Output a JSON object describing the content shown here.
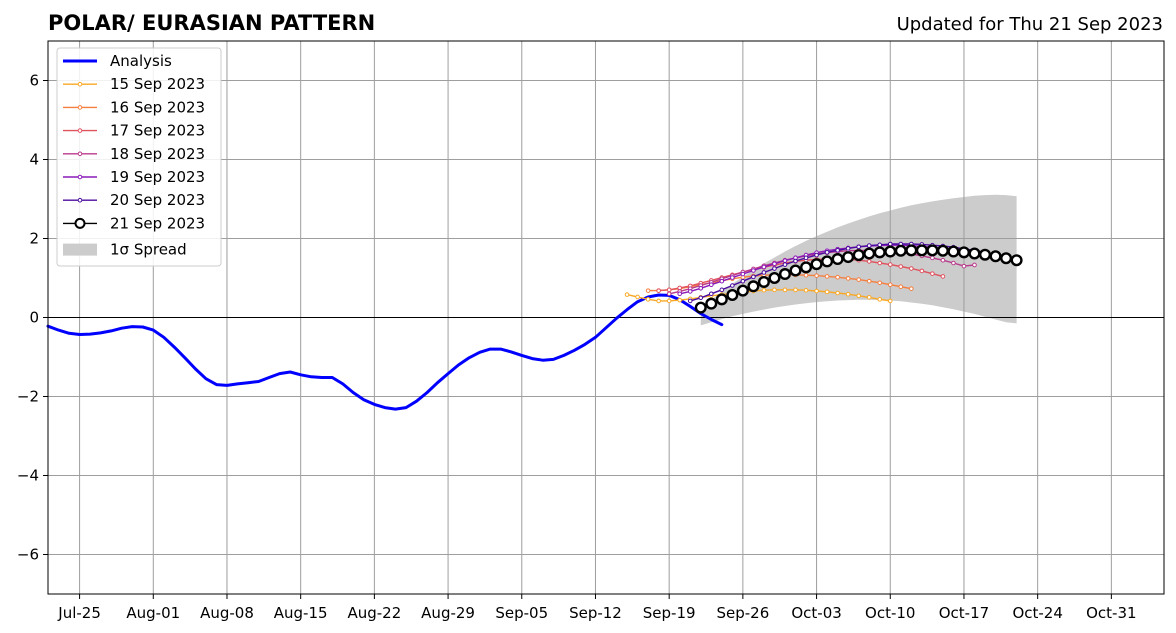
{
  "header": {
    "title": "POLAR/ EURASIAN  PATTERN",
    "updated": "Updated for Thu 21 Sep 2023"
  },
  "chart_data": {
    "type": "line",
    "title": "POLAR/ EURASIAN  PATTERN",
    "xlabel": "",
    "ylabel": "",
    "xlim": [
      "2023-07-22",
      "2023-11-05"
    ],
    "ylim": [
      -7,
      7
    ],
    "grid": true,
    "legend_position": "top-left",
    "x_ticks": [
      "Jul-25",
      "Aug-01",
      "Aug-08",
      "Aug-15",
      "Aug-22",
      "Aug-29",
      "Sep-05",
      "Sep-12",
      "Sep-19",
      "Sep-26",
      "Oct-03",
      "Oct-10",
      "Oct-17",
      "Oct-24",
      "Oct-31"
    ],
    "y_ticks": [
      "−6",
      "−4",
      "−2",
      "0",
      "2",
      "4",
      "6"
    ],
    "y_tick_values": [
      -6,
      -4,
      -2,
      0,
      2,
      4,
      6
    ],
    "analysis": {
      "name": "Analysis",
      "color": "#0000ff",
      "start": "2023-07-22",
      "values": [
        -0.22,
        -0.32,
        -0.4,
        -0.43,
        -0.42,
        -0.39,
        -0.34,
        -0.27,
        -0.23,
        -0.24,
        -0.32,
        -0.5,
        -0.75,
        -1.02,
        -1.3,
        -1.55,
        -1.7,
        -1.72,
        -1.68,
        -1.65,
        -1.62,
        -1.52,
        -1.42,
        -1.38,
        -1.45,
        -1.5,
        -1.52,
        -1.52,
        -1.68,
        -1.9,
        -2.08,
        -2.2,
        -2.28,
        -2.32,
        -2.28,
        -2.12,
        -1.9,
        -1.65,
        -1.42,
        -1.2,
        -1.02,
        -0.88,
        -0.8,
        -0.8,
        -0.87,
        -0.96,
        -1.04,
        -1.08,
        -1.06,
        -0.96,
        -0.83,
        -0.68,
        -0.5,
        -0.26,
        -0.02,
        0.2,
        0.4,
        0.52,
        0.57,
        0.56,
        0.45,
        0.28,
        0.1,
        -0.05,
        -0.18
      ]
    },
    "forecasts": [
      {
        "name": "15 Sep 2023",
        "color": "#f9a825",
        "start": "2023-09-15",
        "values": [
          0.58,
          0.52,
          0.46,
          0.42,
          0.42,
          0.44,
          0.47,
          0.51,
          0.55,
          0.58,
          0.61,
          0.64,
          0.67,
          0.69,
          0.7,
          0.7,
          0.7,
          0.69,
          0.67,
          0.65,
          0.62,
          0.59,
          0.55,
          0.51,
          0.46,
          0.42
        ]
      },
      {
        "name": "16 Sep 2023",
        "color": "#f57f41",
        "start": "2023-09-17",
        "values": [
          0.68,
          0.68,
          0.7,
          0.73,
          0.78,
          0.83,
          0.88,
          0.93,
          0.98,
          1.02,
          1.05,
          1.07,
          1.08,
          1.08,
          1.08,
          1.07,
          1.06,
          1.04,
          1.02,
          0.99,
          0.96,
          0.92,
          0.88,
          0.83,
          0.78,
          0.73
        ]
      },
      {
        "name": "17 Sep 2023",
        "color": "#e0525e",
        "start": "2023-09-18",
        "values": [
          0.68,
          0.7,
          0.75,
          0.8,
          0.87,
          0.94,
          1.01,
          1.08,
          1.15,
          1.21,
          1.27,
          1.33,
          1.38,
          1.42,
          1.45,
          1.47,
          1.48,
          1.48,
          1.47,
          1.45,
          1.42,
          1.38,
          1.34,
          1.29,
          1.24,
          1.18,
          1.11,
          1.04
        ]
      },
      {
        "name": "18 Sep 2023",
        "color": "#b93a8c",
        "start": "2023-09-19",
        "values": [
          0.6,
          0.66,
          0.73,
          0.81,
          0.89,
          0.98,
          1.06,
          1.15,
          1.23,
          1.31,
          1.38,
          1.45,
          1.51,
          1.56,
          1.61,
          1.64,
          1.67,
          1.69,
          1.7,
          1.7,
          1.69,
          1.67,
          1.64,
          1.61,
          1.56,
          1.51,
          1.45,
          1.38,
          1.3,
          1.33
        ]
      },
      {
        "name": "19 Sep 2023",
        "color": "#8a1ab8",
        "start": "2023-09-20",
        "values": [
          0.6,
          0.66,
          0.74,
          0.83,
          0.92,
          1.01,
          1.1,
          1.19,
          1.28,
          1.36,
          1.44,
          1.51,
          1.58,
          1.64,
          1.69,
          1.73,
          1.76,
          1.79,
          1.81,
          1.82,
          1.83,
          1.83,
          1.82,
          1.8,
          1.78,
          1.75,
          1.71,
          1.66,
          1.6,
          1.53
        ]
      },
      {
        "name": "20 Sep 2023",
        "color": "#4b0c9e",
        "start": "2023-09-21",
        "values": [
          0.42,
          0.5,
          0.6,
          0.7,
          0.81,
          0.92,
          1.03,
          1.14,
          1.24,
          1.34,
          1.43,
          1.51,
          1.58,
          1.65,
          1.7,
          1.75,
          1.79,
          1.82,
          1.84,
          1.86,
          1.86,
          1.86,
          1.85,
          1.83,
          1.81,
          1.78,
          1.74,
          1.7,
          1.65,
          1.58
        ]
      },
      {
        "name": "21 Sep 2023",
        "color": "#000000",
        "start": "2023-09-22",
        "values": [
          0.25,
          0.35,
          0.46,
          0.57,
          0.68,
          0.79,
          0.9,
          1.0,
          1.1,
          1.19,
          1.27,
          1.35,
          1.42,
          1.48,
          1.53,
          1.58,
          1.62,
          1.65,
          1.67,
          1.69,
          1.7,
          1.7,
          1.7,
          1.69,
          1.67,
          1.65,
          1.62,
          1.59,
          1.55,
          1.5,
          1.45
        ]
      }
    ],
    "spread": {
      "name": "1σ Spread",
      "color": "#cccccc",
      "start": "2023-09-22",
      "upper": [
        0.22,
        0.45,
        0.65,
        0.85,
        1.03,
        1.2,
        1.37,
        1.52,
        1.67,
        1.81,
        1.94,
        2.06,
        2.17,
        2.28,
        2.38,
        2.47,
        2.56,
        2.64,
        2.71,
        2.78,
        2.84,
        2.89,
        2.94,
        2.98,
        3.02,
        3.05,
        3.08,
        3.1,
        3.11,
        3.1,
        3.07
      ],
      "lower": [
        -0.2,
        -0.12,
        -0.04,
        0.03,
        0.09,
        0.15,
        0.2,
        0.25,
        0.29,
        0.33,
        0.36,
        0.39,
        0.41,
        0.43,
        0.44,
        0.45,
        0.45,
        0.44,
        0.43,
        0.41,
        0.38,
        0.35,
        0.31,
        0.26,
        0.21,
        0.15,
        0.09,
        0.02,
        -0.05,
        -0.12,
        -0.15
      ]
    }
  }
}
